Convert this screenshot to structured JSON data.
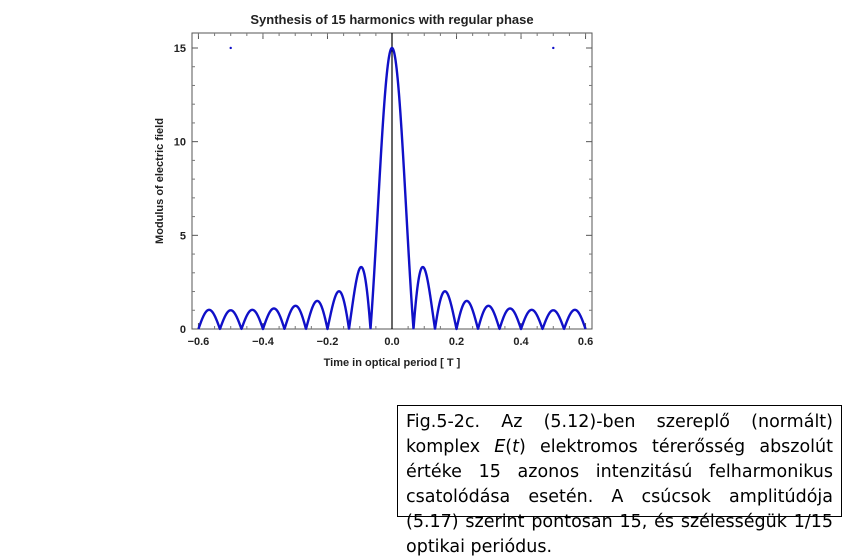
{
  "chart_data": {
    "type": "line",
    "title": "Synthesis of 15 harmonics with regular phase",
    "xlabel": "Time in optical period [ T ]",
    "ylabel": "Modulus of electric field",
    "xlim": [
      -0.62,
      0.62
    ],
    "ylim": [
      0,
      15.8
    ],
    "x_ticks": [
      -0.6,
      -0.4,
      -0.2,
      0.0,
      0.2,
      0.4,
      0.6
    ],
    "x_tick_labels": [
      "−0.6",
      "−0.4",
      "−0.2",
      "0.0",
      "0.2",
      "0.4",
      "0.6"
    ],
    "y_ticks": [
      0,
      5,
      10,
      15
    ],
    "y_tick_labels": [
      "0",
      "5",
      "10",
      "15"
    ],
    "harmonics": 15,
    "series": [
      {
        "function": "|sin(15·π·t) / sin(π·t)|",
        "peaks": [
          {
            "x": -0.5,
            "y": 15
          },
          {
            "x": 0.0,
            "y": 15
          },
          {
            "x": 0.5,
            "y": 15
          }
        ],
        "first_sidelobe_y": 3.3,
        "second_sidelobe_y": 2.0,
        "min_sidelobe_y": 1.0,
        "color": "#1010c8"
      }
    ],
    "vertical_line_x": 0.0,
    "grid": false,
    "legend": "none"
  },
  "caption": {
    "text": "Fig.5-2c. Az (5.12)-ben szereplő (normált) komplex E(t) elektromos térerősség abszolút értéke 15 azonos intenzitású felharmonikus csatolódása esetén. A csúcsok amplitúdója (5.17) szerint pontosan 15, és szélességük 1/15 optikai periódus.",
    "before_italic": "Fig.5-2c. Az (5.12)-ben szereplő (normált) komplex ",
    "italic_E": "E",
    "paren_open": "(",
    "italic_t": "t",
    "after_italic": ") elektromos térerősség abszolút értéke 15 azonos intenzitású felharmonikus csatolódása esetén. A csúcsok amplitúdója (5.17) szerint pontosan 15, és szélességük 1/15 optikai periódus."
  }
}
